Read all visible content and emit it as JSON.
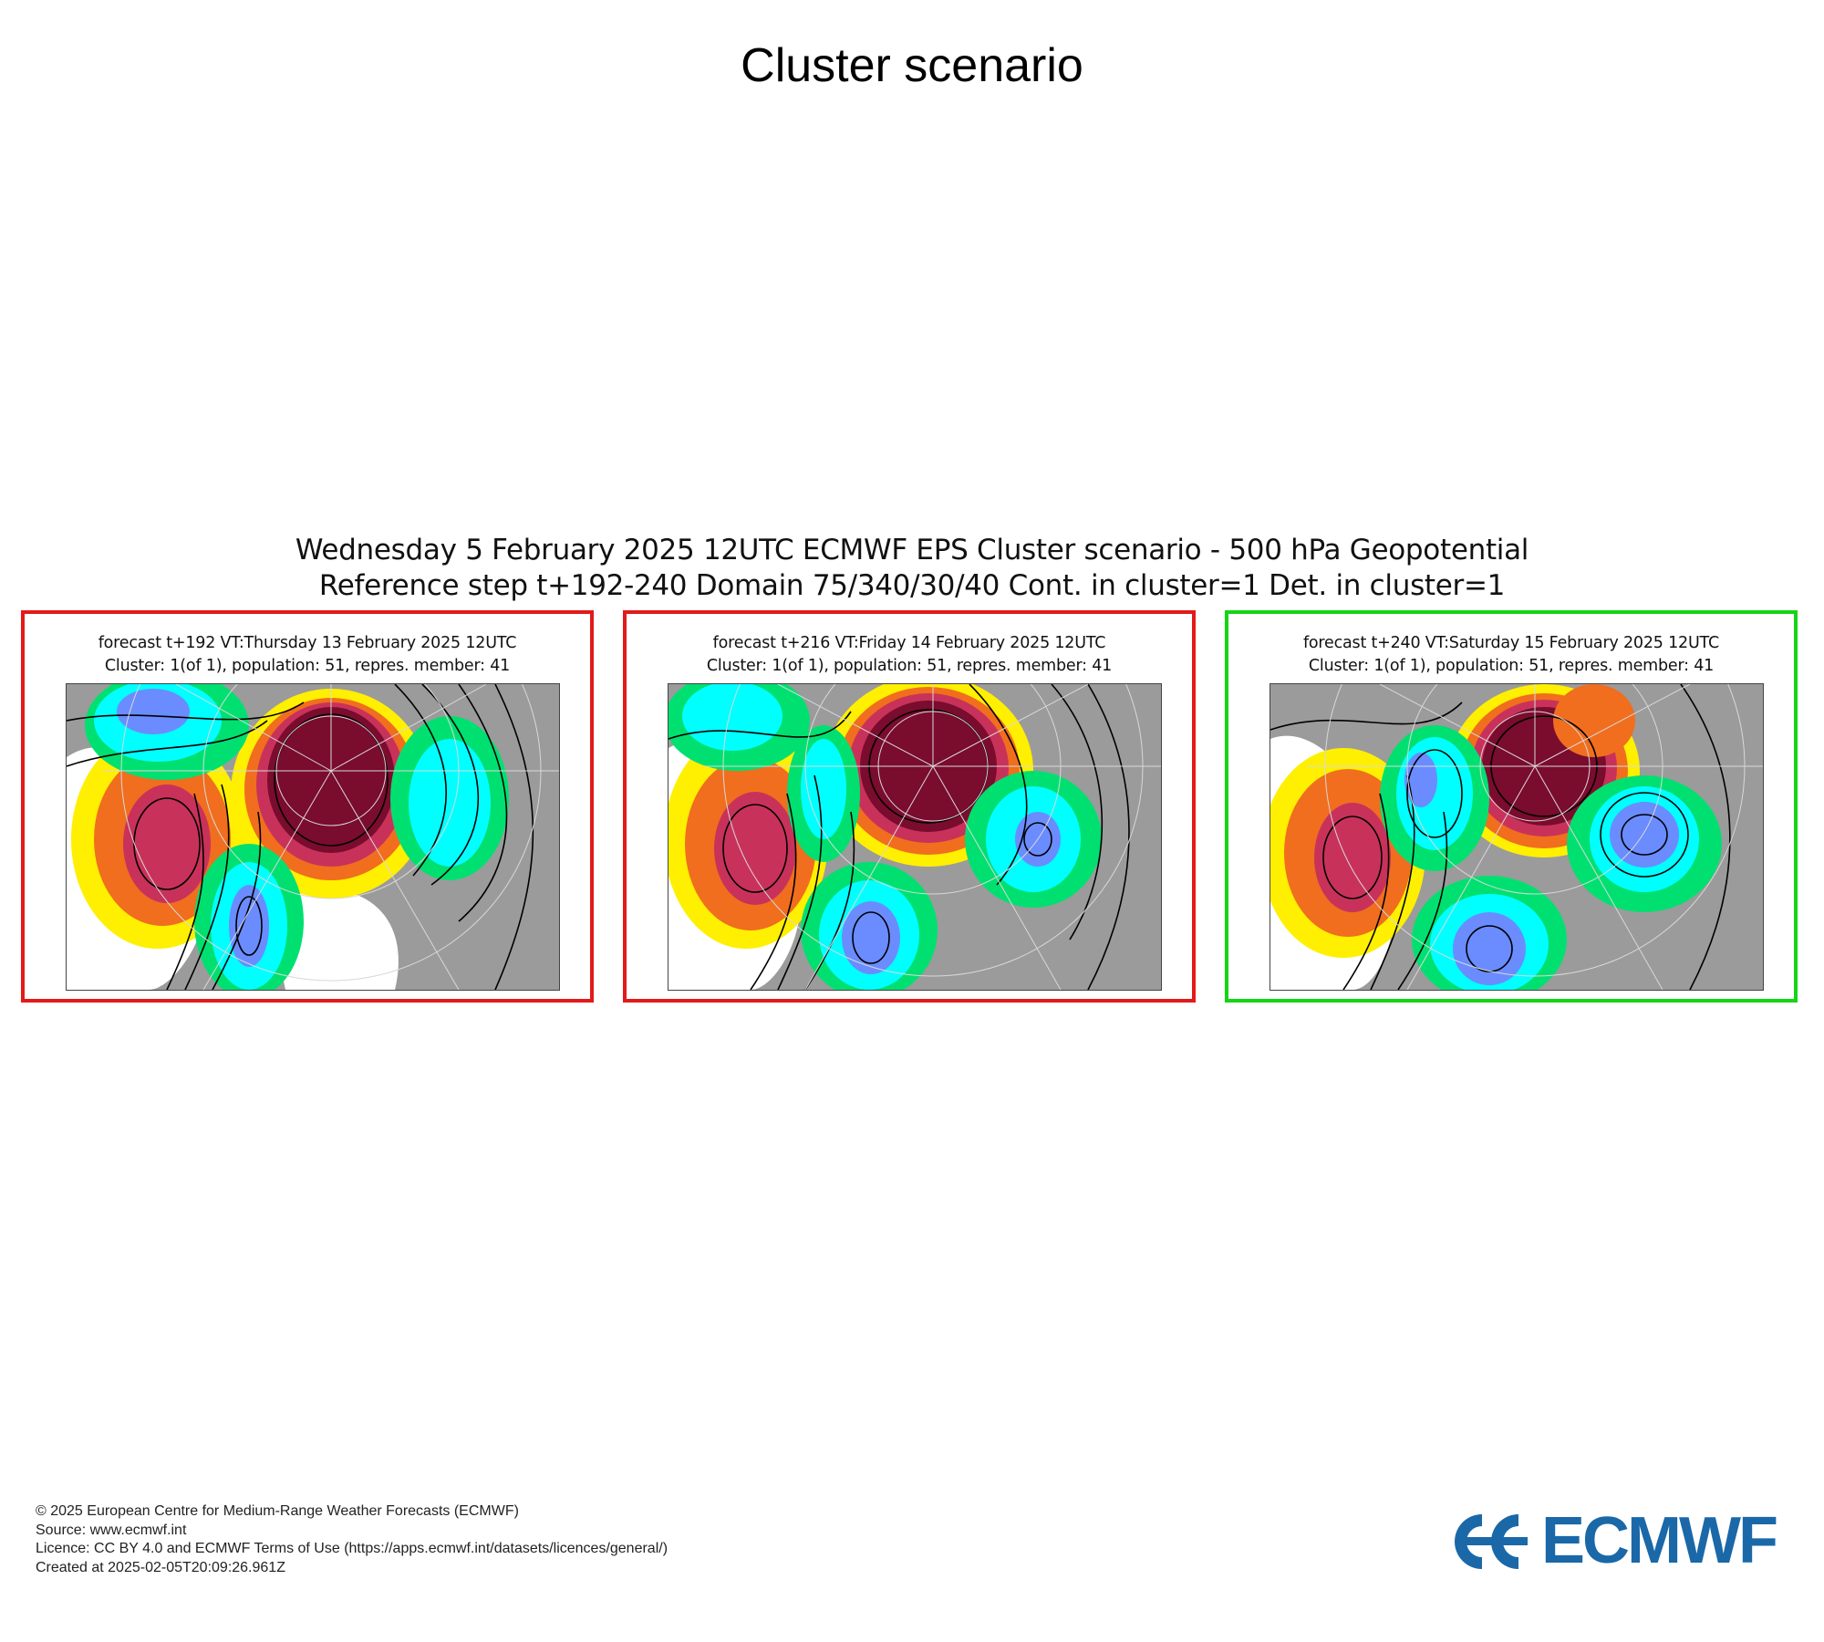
{
  "page_title": "Cluster scenario",
  "plot_header": {
    "line1": "Wednesday 5 February 2025 12UTC ECMWF EPS Cluster scenario - 500 hPa Geopotential",
    "line2": "Reference step t+192-240 Domain 75/340/30/40 Cont. in cluster=1 Det. in cluster=1"
  },
  "panels": [
    {
      "line1": "forecast t+192 VT:Thursday 13 February 2025 12UTC",
      "line2": "Cluster: 1(of 1), population: 51, repres. member: 41",
      "border_color": "#e21a1a"
    },
    {
      "line1": "forecast t+216 VT:Friday 14 February 2025 12UTC",
      "line2": "Cluster: 1(of 1), population: 51, repres. member: 41",
      "border_color": "#e21a1a"
    },
    {
      "line1": "forecast t+240 VT:Saturday 15 February 2025 12UTC",
      "line2": "Cluster: 1(of 1), population: 51, repres. member: 41",
      "border_color": "#16d416"
    }
  ],
  "footer": {
    "copyright": "© 2025 European Centre for Medium-Range Weather Forecasts (ECMWF)",
    "source": "Source: www.ecmwf.int",
    "licence": "Licence: CC BY 4.0 and ECMWF Terms of Use (https://apps.ecmwf.int/datasets/licences/general/)",
    "created": "Created at 2025-02-05T20:09:26.961Z"
  },
  "logo": {
    "text": "ECMWF",
    "color": "#1a68a8"
  },
  "colors": {
    "anomaly_positive_strong": "#7a0c2e",
    "anomaly_positive_high": "#c8325a",
    "anomaly_positive_mid": "#f06e1e",
    "anomaly_positive_low": "#ffef00",
    "anomaly_negative_low": "#00e070",
    "anomaly_negative_mid": "#00ffff",
    "anomaly_negative_high": "#6a8cff",
    "land_background": "#9b9b9b"
  }
}
